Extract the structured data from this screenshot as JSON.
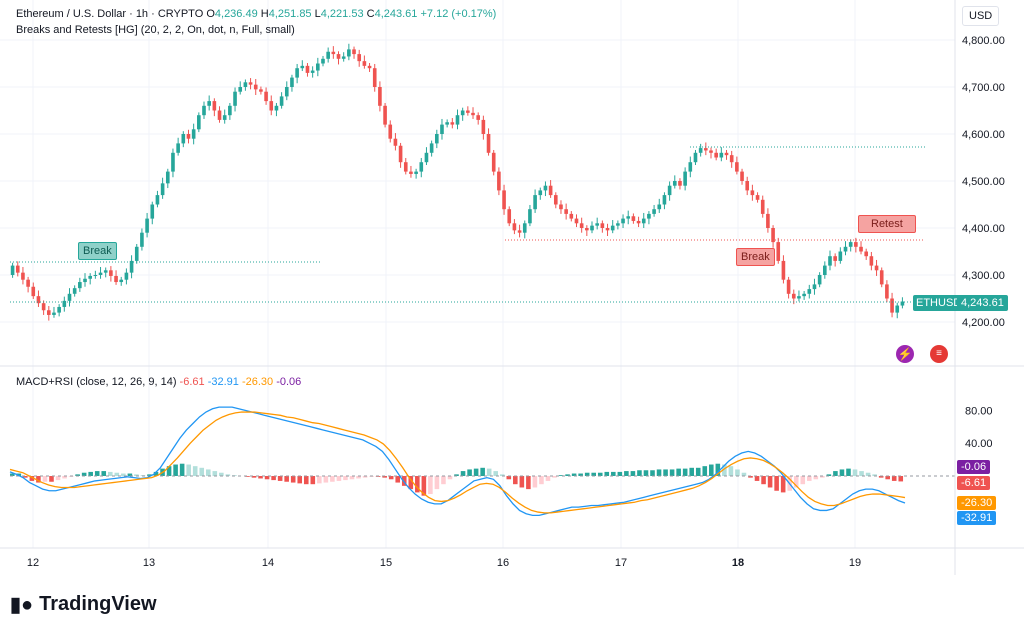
{
  "header": {
    "symbol_line": "Ethereum / U.S. Dollar · 1h · CRYPTO",
    "o_label": "O",
    "o_value": "4,236.49",
    "h_label": "H",
    "h_value": "4,251.85",
    "l_label": "L",
    "l_value": "4,221.53",
    "c_label": "C",
    "c_value": "4,243.61",
    "change": "+7.12 (+0.17%)",
    "indicator": "Breaks and Retests [HG] (20, 2, 2, On, dot, n, Full, small)"
  },
  "currency": "USD",
  "price_axis": {
    "ticks": [
      "4,800.00",
      "4,700.00",
      "4,600.00",
      "4,500.00",
      "4,400.00",
      "4,300.00",
      "4,200.00"
    ]
  },
  "last_price": {
    "symbol": "ETHUSD",
    "value": "4,243.61"
  },
  "annotations": {
    "break1": "Break",
    "break2": "Break",
    "retest": "Retest"
  },
  "macd_panel": {
    "title": "MACD+RSI (close, 12, 26, 9, 14)",
    "v1": "-6.61",
    "v2": "-32.91",
    "v3": "-26.30",
    "v4": "-0.06",
    "ticks": [
      "80.00",
      "40.00"
    ],
    "badges": [
      "-0.06",
      "-6.61",
      "-26.30",
      "-32.91"
    ]
  },
  "time_axis": [
    "12",
    "13",
    "14",
    "15",
    "16",
    "17",
    "18",
    "19"
  ],
  "brand": "TradingView",
  "colors": {
    "up": "#26a69a",
    "down": "#ef5350",
    "macd": "#2196f3",
    "signal": "#ff9800",
    "purple": "#7b1fa2"
  },
  "chart_data": {
    "type": "candlestick",
    "ylim": [
      4180,
      4835
    ],
    "closes": [
      4320,
      4305,
      4290,
      4275,
      4255,
      4240,
      4225,
      4215,
      4220,
      4232,
      4245,
      4260,
      4272,
      4285,
      4292,
      4298,
      4300,
      4305,
      4310,
      4298,
      4285,
      4290,
      4305,
      4330,
      4360,
      4390,
      4420,
      4450,
      4470,
      4495,
      4520,
      4560,
      4580,
      4600,
      4590,
      4610,
      4640,
      4660,
      4670,
      4650,
      4630,
      4640,
      4660,
      4690,
      4700,
      4710,
      4705,
      4695,
      4690,
      4670,
      4650,
      4660,
      4680,
      4700,
      4720,
      4740,
      4745,
      4730,
      4735,
      4750,
      4760,
      4775,
      4770,
      4760,
      4765,
      4780,
      4770,
      4755,
      4745,
      4740,
      4700,
      4660,
      4620,
      4590,
      4575,
      4540,
      4520,
      4515,
      4520,
      4540,
      4560,
      4580,
      4600,
      4620,
      4625,
      4620,
      4640,
      4650,
      4645,
      4640,
      4630,
      4600,
      4560,
      4520,
      4480,
      4440,
      4410,
      4395,
      4390,
      4410,
      4440,
      4470,
      4480,
      4490,
      4470,
      4450,
      4440,
      4430,
      4420,
      4410,
      4400,
      4395,
      4405,
      4410,
      4400,
      4395,
      4405,
      4410,
      4420,
      4425,
      4415,
      4410,
      4420,
      4430,
      4440,
      4450,
      4470,
      4490,
      4500,
      4490,
      4520,
      4540,
      4560,
      4570,
      4565,
      4560,
      4550,
      4560,
      4555,
      4540,
      4520,
      4500,
      4480,
      4470,
      4460,
      4430,
      4400,
      4370,
      4330,
      4290,
      4260,
      4250,
      4255,
      4260,
      4270,
      4280,
      4300,
      4320,
      4340,
      4330,
      4350,
      4360,
      4370,
      4360,
      4350,
      4340,
      4320,
      4310,
      4280,
      4250,
      4220,
      4235,
      4243.61
    ],
    "macd": [
      5,
      2,
      -2,
      -8,
      -12,
      -16,
      -18,
      -18,
      -16,
      -14,
      -12,
      -10,
      -8,
      -6,
      -5,
      -4,
      -3,
      -2,
      -1,
      -2,
      -3,
      -2,
      2,
      10,
      22,
      34,
      46,
      56,
      64,
      72,
      78,
      82,
      84,
      84,
      84,
      82,
      80,
      78,
      76,
      74,
      72,
      70,
      68,
      66,
      64,
      62,
      60,
      58,
      56,
      54,
      52,
      50,
      48,
      46,
      44,
      40,
      36,
      30,
      20,
      8,
      -4,
      -14,
      -22,
      -28,
      -32,
      -34,
      -34,
      -30,
      -24,
      -18,
      -12,
      -6,
      -4,
      -2,
      -4,
      -12,
      -24,
      -34,
      -42,
      -46,
      -48,
      -48,
      -46,
      -44,
      -42,
      -40,
      -38,
      -38,
      -37,
      -36,
      -36,
      -35,
      -34,
      -33,
      -32,
      -30,
      -28,
      -26,
      -24,
      -22,
      -20,
      -18,
      -16,
      -14,
      -12,
      -10,
      -8,
      -4,
      2,
      10,
      18,
      24,
      28,
      30,
      28,
      24,
      18,
      12,
      4,
      -6,
      -16,
      -26,
      -34,
      -40,
      -42,
      -42,
      -40,
      -34,
      -28,
      -22,
      -18,
      -16,
      -16,
      -18,
      -22,
      -26,
      -30,
      -32.91
    ],
    "signal": [
      8,
      6,
      4,
      0,
      -4,
      -8,
      -11,
      -13,
      -14,
      -14,
      -14,
      -13,
      -12,
      -11,
      -10,
      -9,
      -8,
      -7,
      -6,
      -5,
      -4,
      -3,
      -2,
      1,
      6,
      14,
      22,
      31,
      40,
      48,
      56,
      62,
      68,
      72,
      75,
      77,
      78,
      78,
      78,
      77,
      76,
      75,
      74,
      72,
      71,
      69,
      67,
      65,
      64,
      62,
      60,
      58,
      56,
      54,
      52,
      50,
      47,
      44,
      39,
      31,
      21,
      10,
      -2,
      -12,
      -20,
      -26,
      -30,
      -31,
      -30,
      -27,
      -23,
      -18,
      -14,
      -10,
      -9,
      -10,
      -14,
      -20,
      -27,
      -33,
      -38,
      -42,
      -44,
      -45,
      -45,
      -44,
      -43,
      -42,
      -41,
      -40,
      -39,
      -38,
      -37,
      -36,
      -35,
      -34,
      -33,
      -32,
      -30,
      -29,
      -27,
      -25,
      -23,
      -21,
      -19,
      -17,
      -15,
      -12,
      -8,
      -3,
      3,
      9,
      14,
      18,
      21,
      22,
      21,
      19,
      15,
      10,
      4,
      -3,
      -11,
      -19,
      -26,
      -31,
      -34,
      -36,
      -36,
      -34,
      -31,
      -28,
      -25,
      -23,
      -22,
      -22,
      -23,
      -24,
      -25,
      -26.3
    ],
    "histogram": [
      3,
      3,
      -2,
      -6,
      -8,
      -7,
      -7,
      -5,
      -3,
      -1,
      2,
      4,
      5,
      6,
      6,
      5,
      4,
      3,
      3,
      2,
      1,
      2,
      5,
      9,
      12,
      14,
      15,
      14,
      12,
      10,
      8,
      6,
      4,
      2,
      1,
      0,
      -1,
      -2,
      -3,
      -4,
      -5,
      -6,
      -7,
      -8,
      -9,
      -10,
      -10,
      -9,
      -8,
      -7,
      -6,
      -5,
      -4,
      -3,
      -2,
      -1,
      -1,
      -2,
      -4,
      -8,
      -12,
      -16,
      -20,
      -24,
      -22,
      -16,
      -10,
      -4,
      2,
      6,
      8,
      9,
      10,
      9,
      6,
      2,
      -4,
      -10,
      -14,
      -16,
      -14,
      -10,
      -6,
      -2,
      1,
      2,
      3,
      3,
      4,
      4,
      4,
      5,
      5,
      5,
      6,
      6,
      7,
      7,
      7,
      8,
      8,
      8,
      9,
      9,
      10,
      10,
      12,
      14,
      15,
      14,
      12,
      8,
      4,
      -2,
      -6,
      -10,
      -14,
      -18,
      -20,
      -18,
      -14,
      -10,
      -6,
      -4,
      -2,
      2,
      6,
      8,
      9,
      8,
      6,
      4,
      2,
      -2,
      -4,
      -6,
      -6.61
    ],
    "rsi_line_labels": []
  }
}
